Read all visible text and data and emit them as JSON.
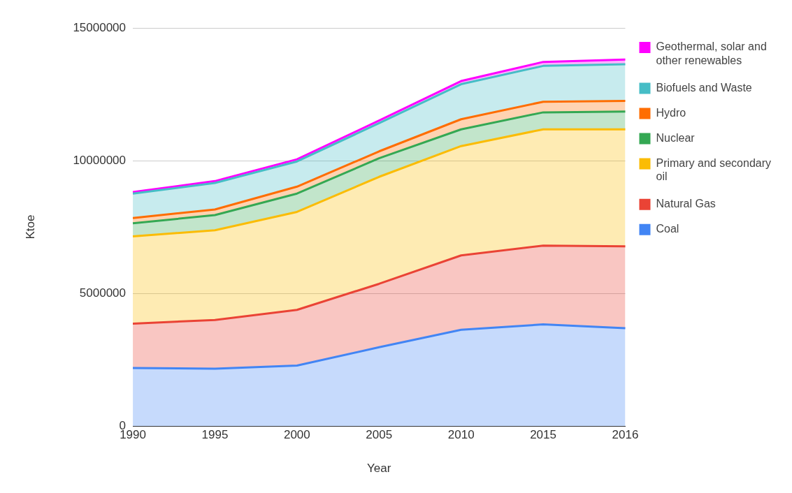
{
  "chart_data": {
    "type": "area",
    "stacked": true,
    "xlabel": "Year",
    "ylabel": "Ktoe",
    "categories": [
      "1990",
      "1995",
      "2000",
      "2005",
      "2010",
      "2015",
      "2016"
    ],
    "ylim": [
      0,
      15000000
    ],
    "yticks": [
      0,
      5000000,
      10000000,
      15000000
    ],
    "grid": "y",
    "legend": "right",
    "series": [
      {
        "name": "Coal",
        "color": "#4285f4",
        "values": [
          2190000,
          2160000,
          2280000,
          2970000,
          3630000,
          3830000,
          3690000
        ]
      },
      {
        "name": "Natural Gas",
        "color": "#ea4335",
        "values": [
          1670000,
          1840000,
          2100000,
          2390000,
          2800000,
          2970000,
          3080000
        ]
      },
      {
        "name": "Primary and secondary oil",
        "color": "#fbbc04",
        "values": [
          3290000,
          3380000,
          3690000,
          4030000,
          4120000,
          4380000,
          4410000
        ]
      },
      {
        "name": "Nuclear",
        "color": "#34a853",
        "values": [
          490000,
          570000,
          690000,
          700000,
          630000,
          640000,
          670000
        ]
      },
      {
        "name": "Hydro",
        "color": "#ff6d01",
        "values": [
          200000,
          210000,
          260000,
          260000,
          380000,
          400000,
          400000
        ]
      },
      {
        "name": "Biofuels and Waste",
        "color": "#46bdc6",
        "values": [
          920000,
          1000000,
          950000,
          1060000,
          1320000,
          1350000,
          1380000
        ]
      },
      {
        "name": "Geothermal, solar and other renewables",
        "color": "#ff00ff",
        "values": [
          60000,
          70000,
          80000,
          100000,
          120000,
          150000,
          180000
        ]
      }
    ]
  }
}
